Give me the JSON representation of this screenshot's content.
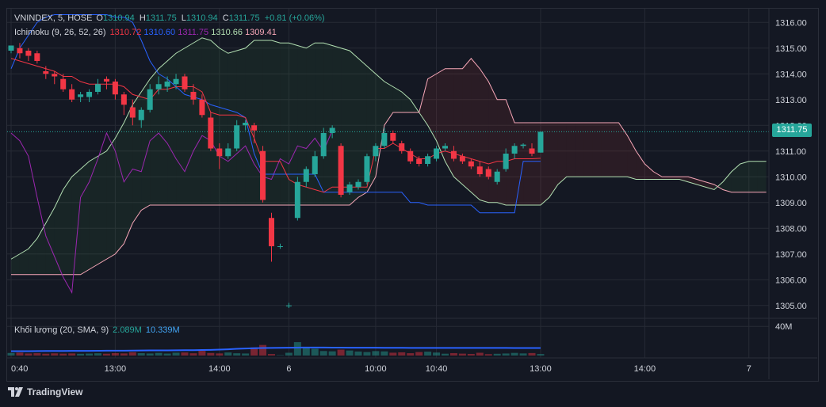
{
  "legend": {
    "symbol": "VNINDEX, 5, HOSE",
    "open_label": "O",
    "open": "1310.94",
    "high_label": "H",
    "high": "1311.75",
    "low_label": "L",
    "low": "1310.94",
    "close_label": "C",
    "close": "1311.75",
    "change": "+0.81 (+0.06%)",
    "ichimoku_name": "Ichimoku (9, 26, 52, 26)",
    "ichimoku_values": [
      {
        "value": "1310.72",
        "color": "#f23645"
      },
      {
        "value": "1310.60",
        "color": "#2962ff"
      },
      {
        "value": "1311.75",
        "color": "#9c27b0"
      },
      {
        "value": "1310.66",
        "color": "#b2dfb2"
      },
      {
        "value": "1309.41",
        "color": "#f7a7b8"
      }
    ],
    "volume_name": "Khối lượng (20, SMA, 9)",
    "volume_value": "2.089M",
    "volume_value_color": "#26a69a",
    "volume_ma": "10.339M",
    "volume_ma_color": "#42a5f5"
  },
  "price_tag": "1311.75",
  "footer": {
    "brand": "TradingView"
  },
  "colors": {
    "up": "#26a69a",
    "down": "#f23645",
    "conversion": "#f23645",
    "base": "#2962ff",
    "lagging": "#9c27b0",
    "span_a": "#b2dfb2",
    "span_b": "#f7a7b8",
    "cloud_bull": "rgba(67,160,71,0.10)",
    "cloud_bear": "rgba(244,67,54,0.10)",
    "volume_ma": "#2962ff",
    "grid": "#262a35"
  },
  "chart_data": {
    "type": "candlestick",
    "y_axis": {
      "ticks": [
        "1316.00",
        "1315.00",
        "1314.00",
        "1313.00",
        "1312.00",
        "1311.00",
        "1310.00",
        "1309.00",
        "1308.00",
        "1307.00",
        "1306.00",
        "1305.00"
      ],
      "ylim": [
        1304.5,
        1316.5
      ]
    },
    "x_axis": {
      "ticks": [
        {
          "i": 0,
          "label": "0:40"
        },
        {
          "i": 12,
          "label": "13:00"
        },
        {
          "i": 24,
          "label": "14:00"
        },
        {
          "i": 32,
          "label": "6"
        },
        {
          "i": 42,
          "label": "10:00"
        },
        {
          "i": 49,
          "label": "10:40"
        },
        {
          "i": 61,
          "label": "13:00"
        },
        {
          "i": 73,
          "label": "14:00"
        },
        {
          "i": 85,
          "label": "7"
        }
      ]
    },
    "volume_axis": {
      "ticks": [
        "40M"
      ],
      "max": 50
    },
    "candles": [
      {
        "o": 1314.9,
        "h": 1315.1,
        "l": 1314.8,
        "c": 1315.1
      },
      {
        "o": 1315.0,
        "h": 1315.2,
        "l": 1314.6,
        "c": 1314.8
      },
      {
        "o": 1314.9,
        "h": 1315.0,
        "l": 1314.5,
        "c": 1314.7
      },
      {
        "o": 1314.8,
        "h": 1314.9,
        "l": 1314.4,
        "c": 1314.5
      },
      {
        "o": 1314.1,
        "h": 1314.3,
        "l": 1313.8,
        "c": 1314.0
      },
      {
        "o": 1314.0,
        "h": 1314.1,
        "l": 1313.6,
        "c": 1313.9
      },
      {
        "o": 1313.8,
        "h": 1314.0,
        "l": 1313.3,
        "c": 1313.4
      },
      {
        "o": 1313.4,
        "h": 1313.6,
        "l": 1312.9,
        "c": 1313.0
      },
      {
        "o": 1313.1,
        "h": 1313.3,
        "l": 1312.9,
        "c": 1313.2
      },
      {
        "o": 1313.1,
        "h": 1313.4,
        "l": 1312.9,
        "c": 1313.3
      },
      {
        "o": 1313.3,
        "h": 1313.8,
        "l": 1313.2,
        "c": 1313.6
      },
      {
        "o": 1313.8,
        "h": 1313.9,
        "l": 1313.4,
        "c": 1313.7
      },
      {
        "o": 1313.7,
        "h": 1313.8,
        "l": 1313.0,
        "c": 1313.2
      },
      {
        "o": 1313.2,
        "h": 1313.3,
        "l": 1312.4,
        "c": 1312.8
      },
      {
        "o": 1312.7,
        "h": 1313.0,
        "l": 1312.0,
        "c": 1312.3
      },
      {
        "o": 1312.2,
        "h": 1312.7,
        "l": 1311.9,
        "c": 1312.6
      },
      {
        "o": 1312.6,
        "h": 1313.6,
        "l": 1312.5,
        "c": 1313.4
      },
      {
        "o": 1313.4,
        "h": 1313.9,
        "l": 1313.2,
        "c": 1313.6
      },
      {
        "o": 1313.5,
        "h": 1313.9,
        "l": 1313.3,
        "c": 1313.7
      },
      {
        "o": 1313.6,
        "h": 1314.0,
        "l": 1313.4,
        "c": 1313.8
      },
      {
        "o": 1313.9,
        "h": 1314.0,
        "l": 1313.3,
        "c": 1313.4
      },
      {
        "o": 1313.3,
        "h": 1313.6,
        "l": 1312.8,
        "c": 1313.0
      },
      {
        "o": 1313.0,
        "h": 1313.2,
        "l": 1312.3,
        "c": 1312.4
      },
      {
        "o": 1312.3,
        "h": 1312.5,
        "l": 1311.0,
        "c": 1311.1
      },
      {
        "o": 1311.1,
        "h": 1311.3,
        "l": 1310.3,
        "c": 1310.8
      },
      {
        "o": 1310.8,
        "h": 1311.3,
        "l": 1310.7,
        "c": 1311.1
      },
      {
        "o": 1311.1,
        "h": 1312.2,
        "l": 1311.0,
        "c": 1312.0
      },
      {
        "o": 1312.0,
        "h": 1312.2,
        "l": 1311.8,
        "c": 1312.1
      },
      {
        "o": 1312.0,
        "h": 1312.1,
        "l": 1311.3,
        "c": 1311.8
      },
      {
        "o": 1311.0,
        "h": 1311.2,
        "l": 1309.0,
        "c": 1309.1
      },
      {
        "o": 1308.4,
        "h": 1308.6,
        "l": 1306.7,
        "c": 1307.3
      },
      {
        "o": 1307.3,
        "h": 1307.4,
        "l": 1307.2,
        "c": 1307.3
      },
      {
        "o": 1305.0,
        "h": 1305.1,
        "l": 1304.9,
        "c": 1305.0
      },
      {
        "o": 1308.4,
        "h": 1310.0,
        "l": 1308.3,
        "c": 1309.8
      },
      {
        "o": 1309.8,
        "h": 1310.4,
        "l": 1309.6,
        "c": 1310.3
      },
      {
        "o": 1310.1,
        "h": 1311.0,
        "l": 1310.0,
        "c": 1310.8
      },
      {
        "o": 1310.8,
        "h": 1311.9,
        "l": 1310.7,
        "c": 1311.7
      },
      {
        "o": 1311.7,
        "h": 1312.0,
        "l": 1311.5,
        "c": 1311.9
      },
      {
        "o": 1311.2,
        "h": 1311.3,
        "l": 1309.2,
        "c": 1309.3
      },
      {
        "o": 1309.4,
        "h": 1309.8,
        "l": 1309.3,
        "c": 1309.7
      },
      {
        "o": 1309.6,
        "h": 1309.9,
        "l": 1309.5,
        "c": 1309.8
      },
      {
        "o": 1309.8,
        "h": 1310.9,
        "l": 1309.7,
        "c": 1310.8
      },
      {
        "o": 1310.8,
        "h": 1311.3,
        "l": 1310.6,
        "c": 1311.2
      },
      {
        "o": 1311.2,
        "h": 1311.9,
        "l": 1311.1,
        "c": 1311.7
      },
      {
        "o": 1311.7,
        "h": 1311.8,
        "l": 1311.3,
        "c": 1311.4
      },
      {
        "o": 1311.3,
        "h": 1311.4,
        "l": 1310.9,
        "c": 1311.0
      },
      {
        "o": 1311.0,
        "h": 1311.1,
        "l": 1310.5,
        "c": 1310.6
      },
      {
        "o": 1310.7,
        "h": 1310.8,
        "l": 1310.4,
        "c": 1310.5
      },
      {
        "o": 1310.5,
        "h": 1310.9,
        "l": 1310.4,
        "c": 1310.8
      },
      {
        "o": 1310.7,
        "h": 1311.2,
        "l": 1310.6,
        "c": 1311.1
      },
      {
        "o": 1311.1,
        "h": 1311.3,
        "l": 1311.0,
        "c": 1311.2
      },
      {
        "o": 1311.0,
        "h": 1311.2,
        "l": 1310.6,
        "c": 1310.7
      },
      {
        "o": 1310.8,
        "h": 1310.9,
        "l": 1310.5,
        "c": 1310.6
      },
      {
        "o": 1310.6,
        "h": 1310.7,
        "l": 1310.3,
        "c": 1310.4
      },
      {
        "o": 1310.4,
        "h": 1310.6,
        "l": 1310.0,
        "c": 1310.1
      },
      {
        "o": 1310.3,
        "h": 1310.4,
        "l": 1309.9,
        "c": 1310.0
      },
      {
        "o": 1309.8,
        "h": 1310.3,
        "l": 1309.7,
        "c": 1310.2
      },
      {
        "o": 1310.3,
        "h": 1311.1,
        "l": 1310.2,
        "c": 1310.9
      },
      {
        "o": 1310.9,
        "h": 1311.3,
        "l": 1310.7,
        "c": 1311.2
      },
      {
        "o": 1311.2,
        "h": 1311.3,
        "l": 1311.1,
        "c": 1311.25
      },
      {
        "o": 1311.1,
        "h": 1311.3,
        "l": 1310.8,
        "c": 1310.9
      },
      {
        "o": 1310.94,
        "h": 1311.75,
        "l": 1310.94,
        "c": 1311.75
      }
    ],
    "volumes": [
      3.5,
      4,
      2.8,
      3.2,
      2.5,
      3,
      2.6,
      2.9,
      2.4,
      2.7,
      3.1,
      2.5,
      3.3,
      2.9,
      4.5,
      3.2,
      2.8,
      3.6,
      2.7,
      3.9,
      4.2,
      3.1,
      6.4,
      3.5,
      2.9,
      4.2,
      3.1,
      2.8,
      11.2,
      14.5,
      2.1,
      0.5,
      3.8,
      18.4,
      11.7,
      9.3,
      6.2,
      5.8,
      8.1,
      6.9,
      5.5,
      4.8,
      6.1,
      5.7,
      3.9,
      4.4,
      3.2,
      4.8,
      5.3,
      4.1,
      2.5,
      3.3,
      2.6,
      2.2,
      3.8,
      1.9,
      2.4,
      2.8,
      3.6,
      2.9,
      3.4,
      2.089
    ],
    "volume_ma": [
      6,
      6,
      6,
      6.1,
      6.2,
      6.3,
      6.3,
      6.4,
      6.4,
      6.4,
      6.5,
      6.6,
      6.6,
      6.7,
      6.8,
      6.9,
      7,
      7.1,
      7.1,
      7.2,
      7.3,
      7.4,
      7.6,
      7.8,
      8.1,
      8.6,
      9.2,
      9.6,
      10,
      10.3,
      10.5,
      10.6,
      10.8,
      10.9,
      11,
      11,
      11,
      10.9,
      10.9,
      10.8,
      10.8,
      10.7,
      10.7,
      10.6,
      10.6,
      10.6,
      10.5,
      10.5,
      10.5,
      10.5,
      10.5,
      10.4,
      10.4,
      10.4,
      10.4,
      10.4,
      10.4,
      10.4,
      10.35,
      10.34,
      10.339,
      10.339
    ],
    "conversion_line": [
      1314.6,
      1314.5,
      1314.4,
      1314.3,
      1314.2,
      1314.1,
      1313.9,
      1313.9,
      1313.7,
      1313.6,
      1313.6,
      1313.6,
      1313.6,
      1313.5,
      1313.2,
      1313.1,
      1313.0,
      1313.4,
      1313.4,
      1313.5,
      1313.5,
      1313.5,
      1313.3,
      1312.5,
      1312.4,
      1312.4,
      1312.4,
      1312.3,
      1311.5,
      1310.6,
      1310.6,
      1310.6,
      1309.9,
      1309.7,
      1309.6,
      1309.5,
      1309.4,
      1309.6,
      1309.6,
      1309.6,
      1309.6,
      1309.6,
      1311.1,
      1311.1,
      1311.3,
      1311.1,
      1310.9,
      1310.7,
      1310.7,
      1310.9,
      1311.0,
      1310.9,
      1310.8,
      1310.7,
      1310.6,
      1310.5,
      1310.6,
      1310.6,
      1310.7,
      1310.7,
      1310.7,
      1310.72
    ],
    "base_line": [
      1314.2,
      1315.0,
      1315.5,
      1316.0,
      1316.2,
      1316.3,
      1316.3,
      1316.3,
      1316.3,
      1316.3,
      1316.3,
      1316.3,
      1316.2,
      1316.2,
      1316.0,
      1315.3,
      1314.5,
      1314.0,
      1313.8,
      1313.5,
      1313.2,
      1313.1,
      1313.0,
      1312.8,
      1312.7,
      1312.6,
      1312.5,
      1312.3,
      1310.9,
      1310.1,
      1310.1,
      1310.1,
      1310.1,
      1310.1,
      1310.1,
      1310.1,
      1309.4,
      1309.4,
      1309.4,
      1309.4,
      1309.4,
      1309.4,
      1309.4,
      1309.4,
      1309.4,
      1309.4,
      1309.0,
      1309.0,
      1308.9,
      1308.9,
      1308.9,
      1308.9,
      1308.9,
      1308.9,
      1308.6,
      1308.6,
      1308.6,
      1308.6,
      1308.6,
      1310.6,
      1310.6,
      1310.6
    ],
    "lagging_line": {
      "offset": 0,
      "values": [
        1311.7,
        1311.4,
        1310.8,
        1309.2,
        1307.7,
        1306.9,
        1306.1,
        1305.5,
        1309.2,
        1309.8,
        1310.7,
        1311.7,
        1311.0,
        1309.8,
        1310.3,
        1310.2,
        1311.4,
        1311.7,
        1311.3,
        1310.7,
        1310.2,
        1311.0,
        1311.6,
        1311.4,
        1310.8,
        1310.6,
        1310.9,
        1311.2,
        1310.5,
        1310.0,
        1309.9,
        1310.7,
        1310.5,
        1311.2,
        1311.1,
        1311.5,
        1311.0,
        1311.8
      ]
    },
    "span_a": {
      "offset": 0,
      "values": [
        1306.8,
        1307.0,
        1307.2,
        1307.6,
        1308.2,
        1308.8,
        1309.5,
        1310.0,
        1310.3,
        1310.6,
        1310.8,
        1311.0,
        1311.5,
        1312.1,
        1312.8,
        1313.3,
        1313.8,
        1314.2,
        1314.5,
        1314.8,
        1315.0,
        1315.2,
        1315.4,
        1315.3,
        1315.0,
        1314.8,
        1314.9,
        1315.0,
        1315.3,
        1315.3,
        1315.3,
        1315.2,
        1315.2,
        1315.1,
        1315.0,
        1315.2,
        1315.2,
        1315.1,
        1315.0,
        1314.9,
        1314.6,
        1314.3,
        1314.0,
        1313.7,
        1313.5,
        1313.3,
        1313.0,
        1312.5,
        1312.0,
        1311.4,
        1310.6,
        1310.0,
        1309.7,
        1309.4,
        1309.1,
        1309.0,
        1309.0,
        1308.9,
        1308.9,
        1308.9,
        1308.9,
        1308.9,
        1309.2,
        1309.7,
        1310.0,
        1310.0,
        1310.0,
        1310.0,
        1310.0,
        1310.0,
        1310.0,
        1310.0,
        1309.9,
        1309.9,
        1309.9,
        1309.9,
        1309.9,
        1309.9,
        1309.8,
        1309.7,
        1309.6,
        1309.5,
        1309.8,
        1310.2,
        1310.5,
        1310.6,
        1310.6,
        1310.6
      ]
    },
    "span_b": {
      "offset": 0,
      "values": [
        1306.2,
        1306.2,
        1306.2,
        1306.2,
        1306.2,
        1306.2,
        1306.2,
        1306.2,
        1306.2,
        1306.4,
        1306.6,
        1306.8,
        1307.0,
        1307.4,
        1308.2,
        1308.7,
        1308.9,
        1308.9,
        1308.9,
        1308.9,
        1308.9,
        1308.9,
        1308.9,
        1308.9,
        1308.9,
        1308.9,
        1308.9,
        1308.9,
        1308.9,
        1308.9,
        1308.9,
        1308.9,
        1308.9,
        1308.9,
        1308.9,
        1308.9,
        1308.9,
        1308.9,
        1308.9,
        1308.9,
        1309.2,
        1309.4,
        1310.0,
        1312.0,
        1312.5,
        1312.5,
        1312.5,
        1312.5,
        1313.8,
        1314.0,
        1314.2,
        1314.2,
        1314.2,
        1314.6,
        1314.2,
        1313.7,
        1313.0,
        1313.0,
        1312.1,
        1312.1,
        1312.1,
        1312.1,
        1312.1,
        1312.1,
        1312.1,
        1312.1,
        1312.1,
        1312.1,
        1312.1,
        1312.1,
        1312.1,
        1311.6,
        1311.0,
        1310.5,
        1310.2,
        1310.0,
        1310.0,
        1310.0,
        1310.0,
        1309.9,
        1309.8,
        1309.7,
        1309.5,
        1309.4,
        1309.4,
        1309.4,
        1309.4,
        1309.4
      ]
    }
  }
}
